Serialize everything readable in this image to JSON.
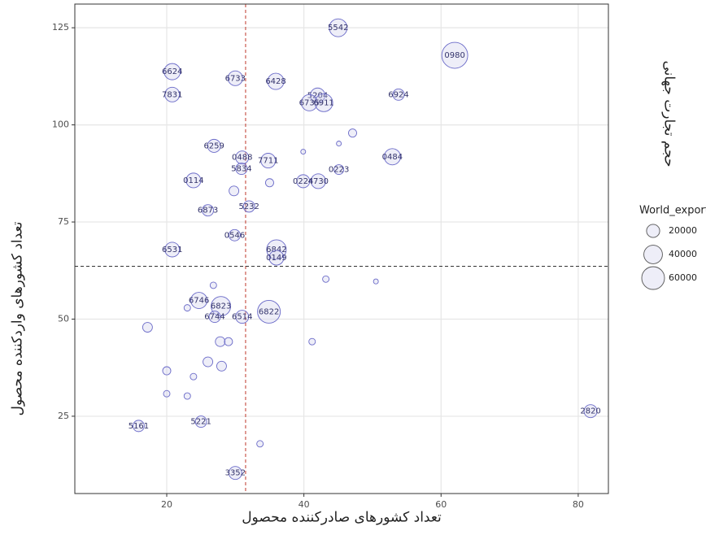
{
  "chart_data": {
    "type": "bubble",
    "x_label": "تعداد کشورهای صادرکننده محصول",
    "y_label": "تعداد کشورهای واردکننده محصول",
    "side_title": "حجم تجارت جهانی",
    "legend_title": "World_export",
    "legend_sizes": [
      20000,
      40000,
      60000
    ],
    "xlim": [
      6.6,
      84.4
    ],
    "ylim": [
      5.1,
      131.1
    ],
    "xticks": [
      20,
      40,
      60,
      80
    ],
    "yticks": [
      25,
      50,
      75,
      100,
      125
    ],
    "grid": true,
    "vline": 31.5,
    "hline": 63.6,
    "color": "#6a6ac8",
    "series": [
      {
        "name": "World_export",
        "labels": [
          "5542",
          "0980",
          "6624",
          "6733",
          "6428",
          "7831",
          "5204",
          "6735",
          "6911",
          "6924",
          "6259",
          "0488",
          "7711",
          "5834",
          "0484",
          "0114",
          "0224",
          "4730",
          "0223",
          "6873",
          "5232",
          "0546",
          "6531",
          "6842",
          "0149",
          "6746",
          "6823",
          "6744",
          "6514",
          "6822",
          "2820",
          "5161",
          "5221",
          "3352",
          null,
          null,
          null,
          null,
          null,
          null,
          null,
          null,
          null,
          null,
          null,
          null,
          null,
          null,
          null,
          null,
          null,
          null,
          null,
          null
        ],
        "x": [
          45.0,
          62.0,
          20.8,
          30.0,
          35.9,
          20.8,
          42.0,
          40.8,
          42.9,
          53.8,
          26.9,
          31.0,
          34.8,
          30.9,
          52.9,
          23.9,
          39.9,
          42.1,
          45.1,
          26.0,
          32.0,
          29.9,
          20.8,
          36.0,
          36.0,
          24.7,
          27.9,
          27.0,
          31.0,
          34.9,
          81.8,
          15.9,
          25.0,
          30.0,
          17.2,
          27.8,
          29.0,
          26.0,
          28.0,
          20.0,
          23.9,
          23.0,
          41.2,
          43.2,
          47.1,
          45.1,
          39.9,
          35.0,
          29.8,
          50.5,
          33.6,
          20.0,
          26.8,
          23.0
        ],
        "y": [
          125.0,
          117.9,
          113.7,
          112.0,
          111.2,
          107.8,
          107.6,
          105.7,
          105.7,
          107.8,
          94.6,
          91.6,
          90.8,
          88.7,
          91.8,
          85.7,
          85.5,
          85.5,
          88.5,
          78.0,
          79.0,
          71.6,
          67.9,
          67.9,
          65.8,
          54.8,
          53.3,
          50.6,
          50.6,
          51.9,
          26.3,
          22.5,
          23.6,
          10.4,
          47.9,
          44.2,
          44.2,
          39.0,
          37.9,
          36.7,
          35.2,
          30.2,
          44.2,
          60.3,
          97.9,
          95.2,
          93.1,
          85.1,
          83.0,
          59.7,
          17.9,
          30.8,
          58.7,
          52.9
        ],
        "sizes": [
          37000,
          78000,
          30600,
          25000,
          30600,
          25000,
          25000,
          30600,
          37000,
          15000,
          19600,
          19600,
          25000,
          15000,
          30600,
          25000,
          19600,
          25000,
          11000,
          15000,
          15000,
          15000,
          25000,
          44000,
          25000,
          30600,
          44000,
          15000,
          19600,
          60000,
          19600,
          15000,
          15000,
          19600,
          11000,
          11000,
          7700,
          11000,
          11000,
          7700,
          4900,
          4900,
          4900,
          4900,
          7700,
          2800,
          2800,
          7700,
          11000,
          2800,
          4900,
          4900,
          4900,
          4900
        ]
      }
    ]
  }
}
